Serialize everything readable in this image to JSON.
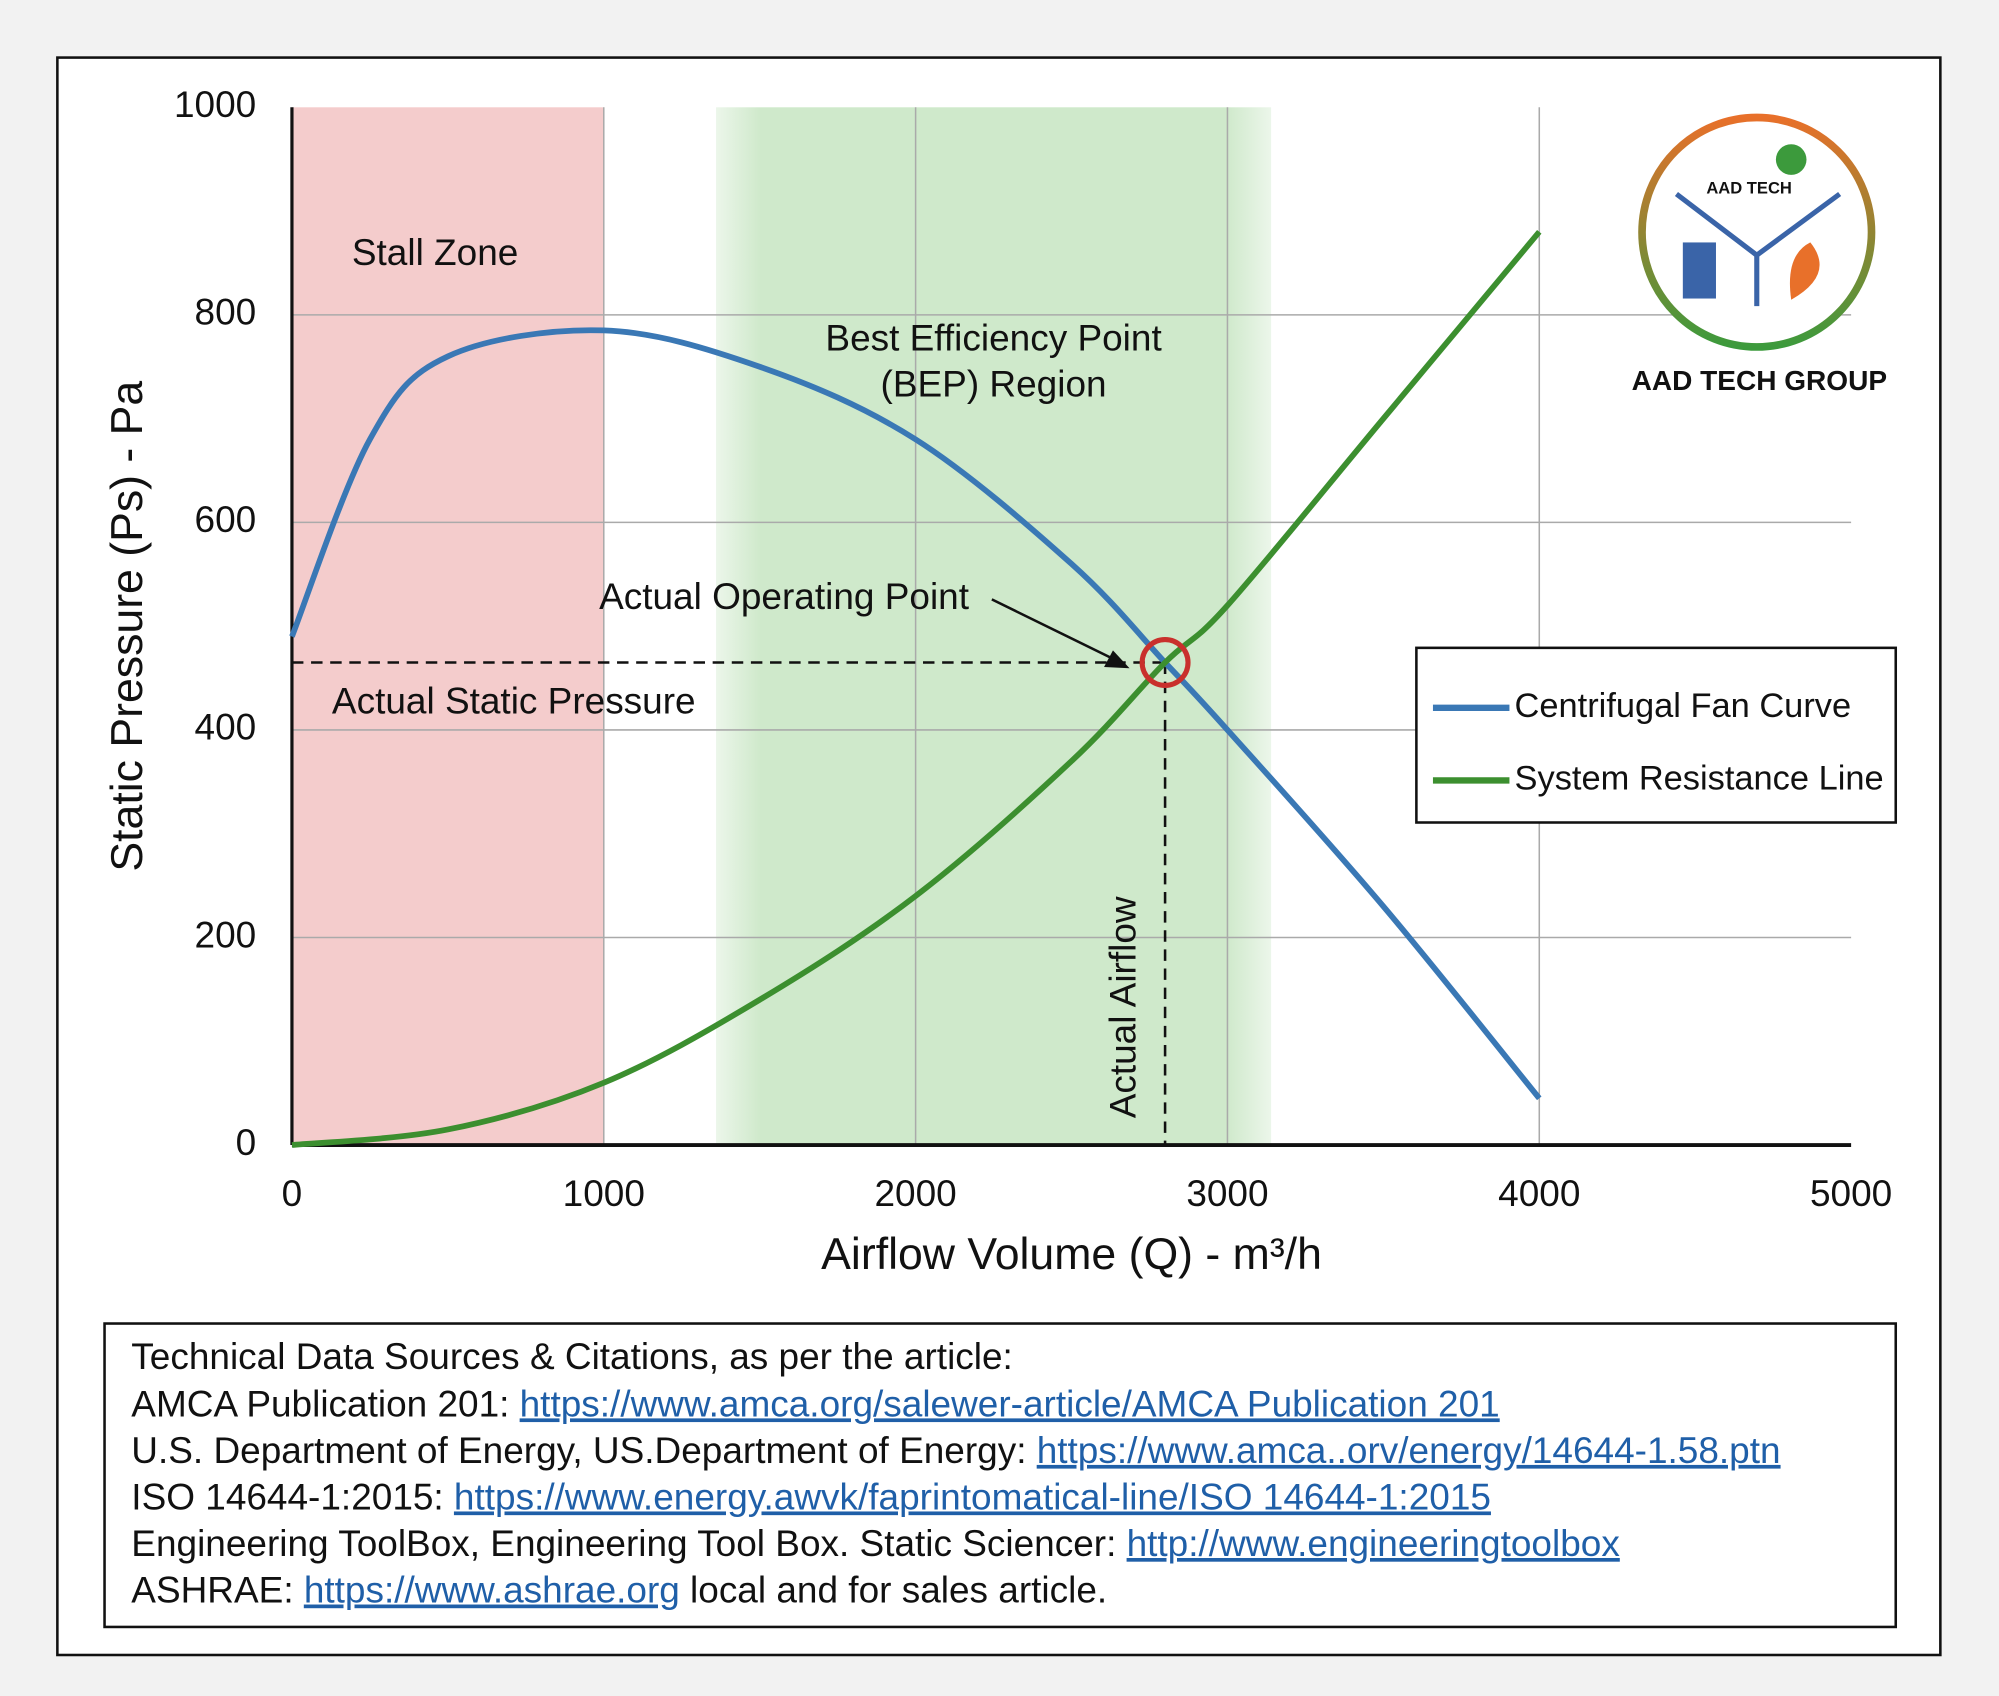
{
  "chart_data": {
    "type": "line",
    "x_label": "Airflow Volume (Q) - m³/h",
    "y_label": "Static Pressure (Ps) - Pa",
    "xlim": [
      0,
      5000
    ],
    "xticks": [
      0,
      1000,
      2000,
      3000,
      4000,
      5000
    ],
    "ylim": [
      0,
      1000
    ],
    "yticks": [
      0,
      200,
      400,
      600,
      800,
      1000
    ],
    "grid": true,
    "legend": "right",
    "series": [
      {
        "name": "Centrifugal Fan Curve",
        "color": "#3a78b5",
        "x": [
          0,
          250,
          500,
          1000,
          1500,
          2000,
          2500,
          2800,
          3000,
          3500,
          4000
        ],
        "values": [
          490,
          680,
          760,
          785,
          750,
          680,
          560,
          465,
          400,
          230,
          45
        ]
      },
      {
        "name": "System Resistance Line",
        "color": "#3c8f2f",
        "x": [
          0,
          500,
          1000,
          1500,
          2000,
          2500,
          2800,
          3000,
          3500,
          4000
        ],
        "values": [
          0,
          15,
          60,
          140,
          240,
          370,
          465,
          520,
          700,
          880
        ]
      }
    ],
    "regions": [
      {
        "label": [
          "Stall Zone"
        ],
        "range": [
          0,
          1000
        ],
        "color": "#f4cccc"
      },
      {
        "label": [
          "Best Efficiency Point",
          "(BEP) Region"
        ],
        "range": [
          1360,
          3140
        ],
        "color": "#cfe9cb"
      }
    ],
    "operating_point": {
      "label": "Actual Operating Point",
      "x": 2800,
      "y": 465,
      "color": "#c9302c",
      "y_label": "Actual Static Pressure",
      "x_label": "Actual Airflow"
    }
  },
  "logo": {
    "badge": "AAD TECH",
    "name": "AAD TECH GROUP"
  },
  "citations": {
    "heading": "Technical Data Sources & Citations, as per the article:",
    "lines": [
      {
        "prefix": "AMCA Publication 201:",
        "link": "https://www.amca.org/salewer-article/AMCA Publication 201"
      },
      {
        "prefix": "U.S. Department of Energy, US.Department of Energy:",
        "link": "https://www.amca..orv/energy/14644-1.58.ptn"
      },
      {
        "prefix": "ISO 14644-1:2015:",
        "link": "https://www.energy.awvk/faprintomatical-line/ISO 14644-1:2015"
      },
      {
        "prefix": "Engineering ToolBox, Engineering Tool Box. Static Sciencer:",
        "link": "http://www.engineeringtoolbox"
      },
      {
        "prefix": "ASHRAE:",
        "link": "https://www.ashrae.org",
        "suffix": "local and for sales article."
      }
    ]
  }
}
